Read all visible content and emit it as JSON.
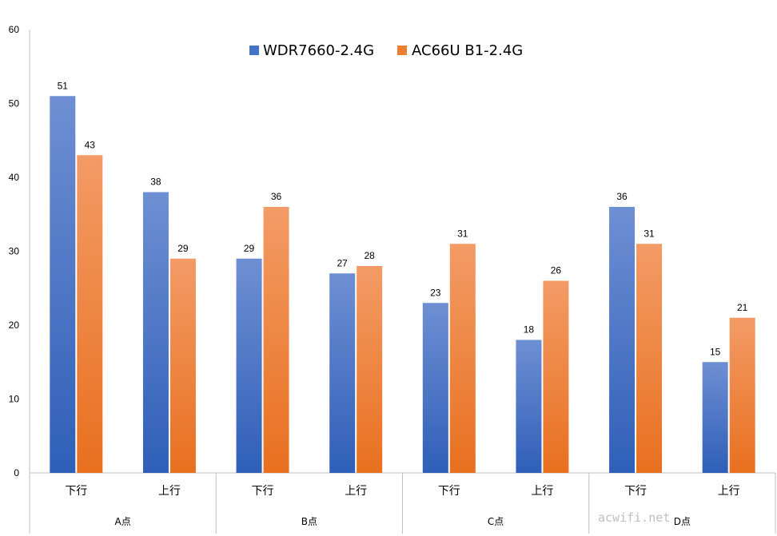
{
  "chart_data": {
    "type": "bar",
    "ylim": [
      0,
      60
    ],
    "yticks": [
      0,
      10,
      20,
      30,
      40,
      50,
      60
    ],
    "grid": false,
    "legend_position": "top-center",
    "groups": [
      "A点",
      "B点",
      "C点",
      "D点"
    ],
    "subcategories": [
      "下行",
      "上行"
    ],
    "series": [
      {
        "name": "WDR7660-2.4G",
        "color": "#4472C4",
        "values": [
          51,
          38,
          29,
          27,
          23,
          18,
          36,
          15
        ]
      },
      {
        "name": "AC66U B1-2.4G",
        "color": "#ED7D31",
        "values": [
          43,
          29,
          36,
          28,
          31,
          26,
          31,
          21
        ]
      }
    ]
  },
  "watermark": "acwifi.net"
}
